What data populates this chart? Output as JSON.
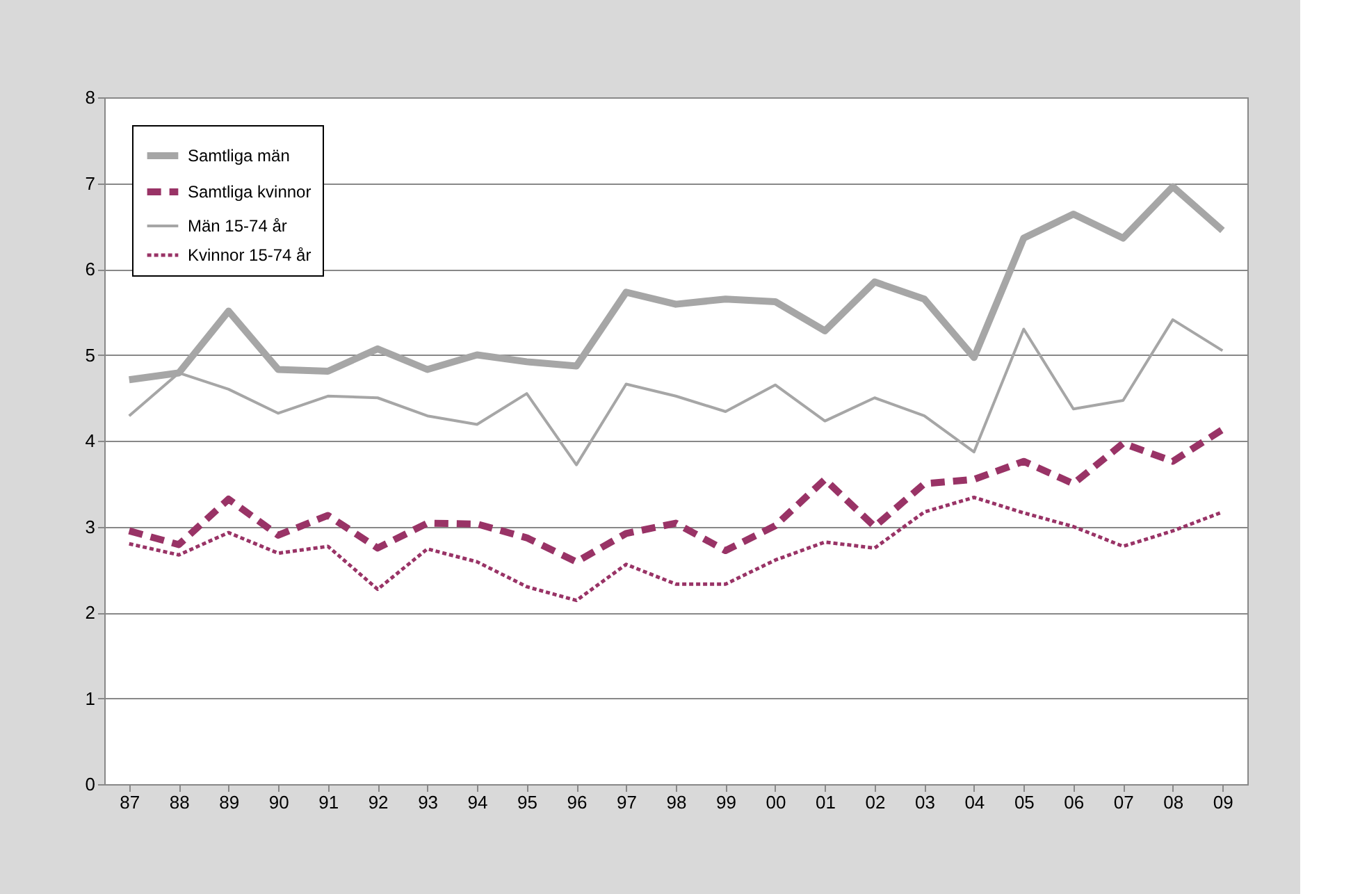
{
  "chart_data": {
    "type": "line",
    "categories": [
      "87",
      "88",
      "89",
      "90",
      "91",
      "92",
      "93",
      "94",
      "95",
      "96",
      "97",
      "98",
      "99",
      "00",
      "01",
      "02",
      "03",
      "04",
      "05",
      "06",
      "07",
      "08",
      "09"
    ],
    "series": [
      {
        "name": "Samtliga män",
        "color": "#a6a6a6",
        "line_style": "solid",
        "values": [
          4.71,
          4.79,
          5.51,
          4.83,
          4.81,
          5.07,
          4.83,
          5.0,
          4.92,
          4.87,
          5.73,
          5.59,
          5.65,
          5.62,
          5.28,
          5.85,
          5.65,
          4.97,
          6.36,
          6.64,
          6.36,
          6.96,
          6.45
        ]
      },
      {
        "name": "Samtliga kvinnor",
        "color": "#993366",
        "line_style": "dashed",
        "values": [
          2.95,
          2.79,
          3.32,
          2.9,
          3.13,
          2.75,
          3.04,
          3.03,
          2.87,
          2.59,
          2.92,
          3.04,
          2.72,
          3.01,
          3.55,
          3.0,
          3.5,
          3.55,
          3.76,
          3.5,
          3.97,
          3.76,
          4.13
        ]
      },
      {
        "name": "Män 15-74 år",
        "color": "#a6a6a6",
        "line_style": "solid",
        "values": [
          4.29,
          4.79,
          4.6,
          4.32,
          4.52,
          4.5,
          4.29,
          4.19,
          4.55,
          3.72,
          4.66,
          4.52,
          4.34,
          4.65,
          4.23,
          4.5,
          4.29,
          3.87,
          5.3,
          4.37,
          4.47,
          5.41,
          5.05
        ]
      },
      {
        "name": "Kvinnor 15-74 år",
        "color": "#993366",
        "line_style": "dotted",
        "values": [
          2.8,
          2.67,
          2.93,
          2.69,
          2.77,
          2.27,
          2.74,
          2.59,
          2.3,
          2.14,
          2.56,
          2.33,
          2.33,
          2.61,
          2.82,
          2.75,
          3.17,
          3.34,
          3.16,
          3.0,
          2.77,
          2.95,
          3.17
        ]
      }
    ],
    "ylim": [
      0,
      8
    ],
    "yticks": [
      0,
      1,
      2,
      3,
      4,
      5,
      6,
      7,
      8
    ],
    "grid": "y",
    "legend": "top left",
    "marker": "none"
  }
}
